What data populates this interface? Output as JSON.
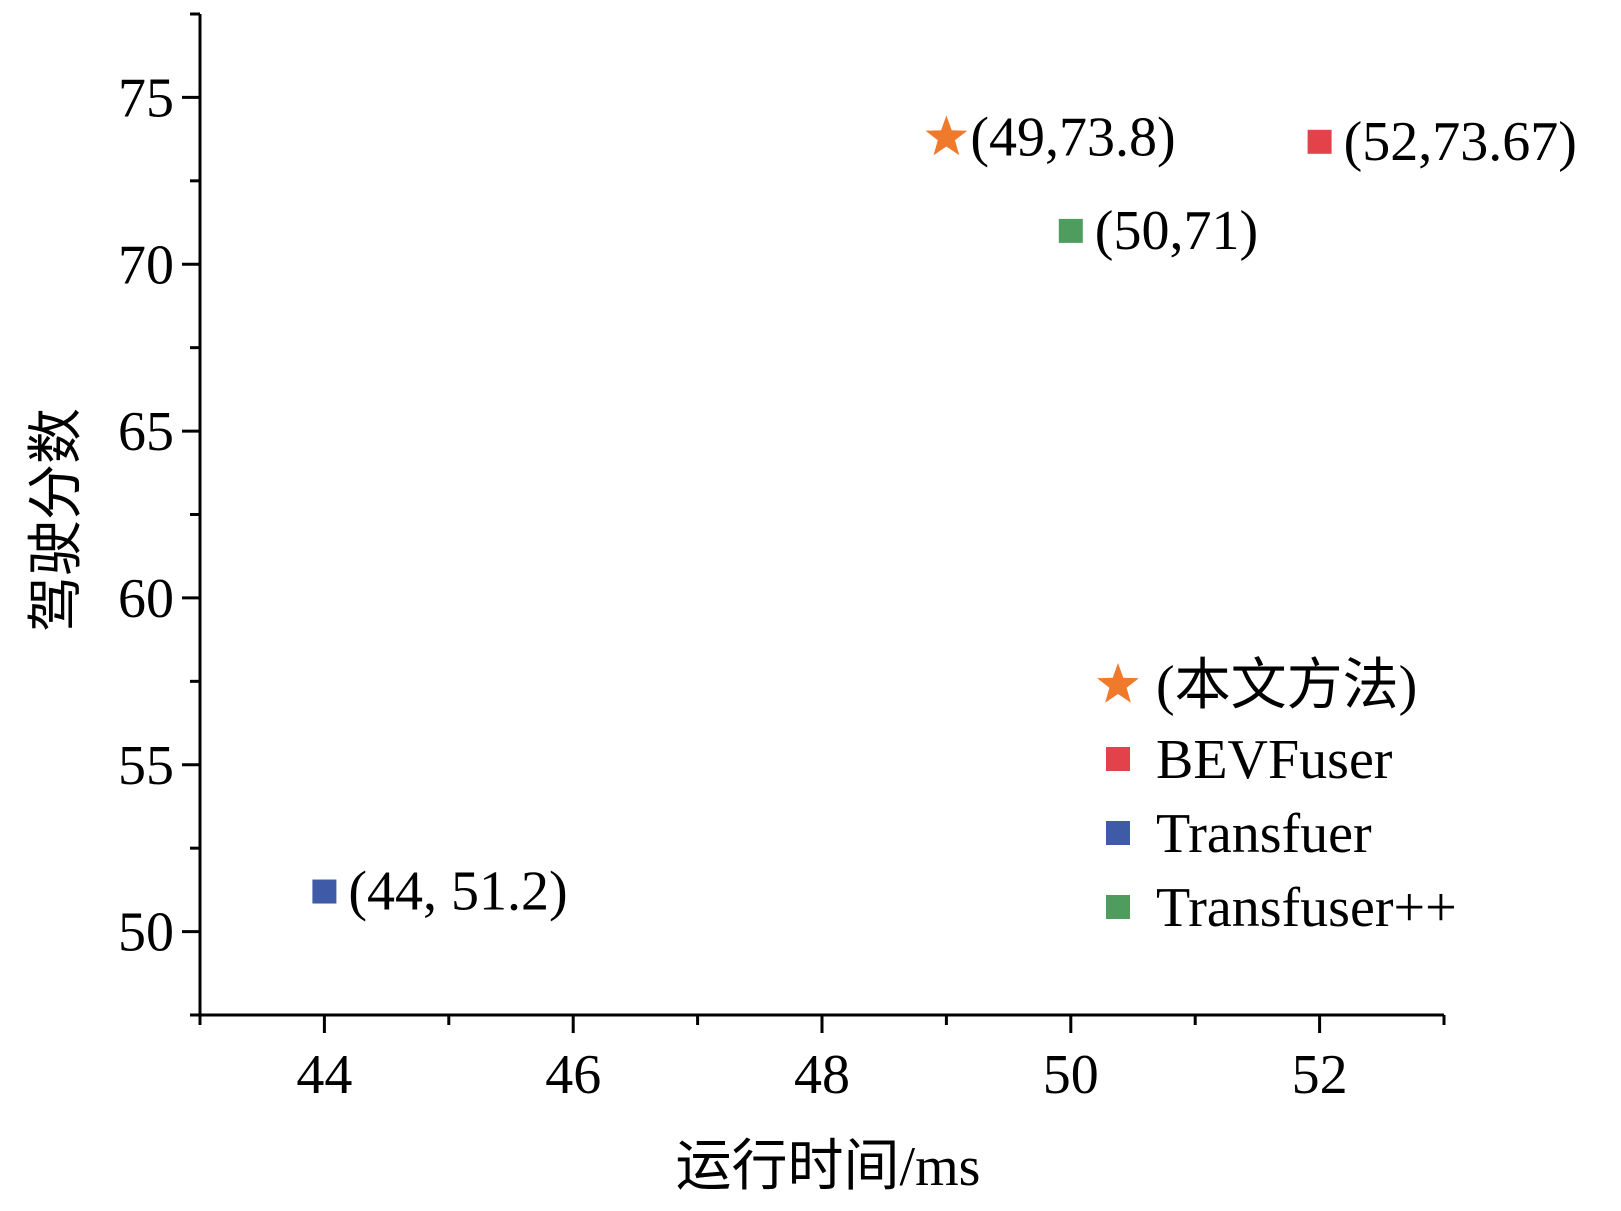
{
  "chart_data": {
    "type": "scatter",
    "xlabel": "运行时间/ms",
    "ylabel": "驾驶分数",
    "xlim": [
      43,
      53
    ],
    "ylim": [
      47.5,
      77.5
    ],
    "x_ticks": [
      44,
      46,
      48,
      50,
      52
    ],
    "y_ticks": [
      50,
      55,
      60,
      65,
      70,
      75
    ],
    "grid": false,
    "legend_position": "bottom-right",
    "series": [
      {
        "name": "(本文方法)",
        "marker": "star",
        "color": "#f07a2c",
        "x": [
          49
        ],
        "y": [
          73.8
        ],
        "labels": [
          "(49,73.8)"
        ]
      },
      {
        "name": "BEVFuser",
        "marker": "square",
        "color": "#e3424a",
        "x": [
          52
        ],
        "y": [
          73.67
        ],
        "labels": [
          "(52,73.67)"
        ]
      },
      {
        "name": "Transfuer",
        "marker": "square",
        "color": "#3f5ba8",
        "x": [
          44
        ],
        "y": [
          51.2
        ],
        "labels": [
          "(44, 51.2)"
        ]
      },
      {
        "name": "Transfuser++",
        "marker": "square",
        "color": "#4e9d5e",
        "x": [
          50
        ],
        "y": [
          71
        ],
        "labels": [
          "(50,71)"
        ]
      }
    ]
  }
}
